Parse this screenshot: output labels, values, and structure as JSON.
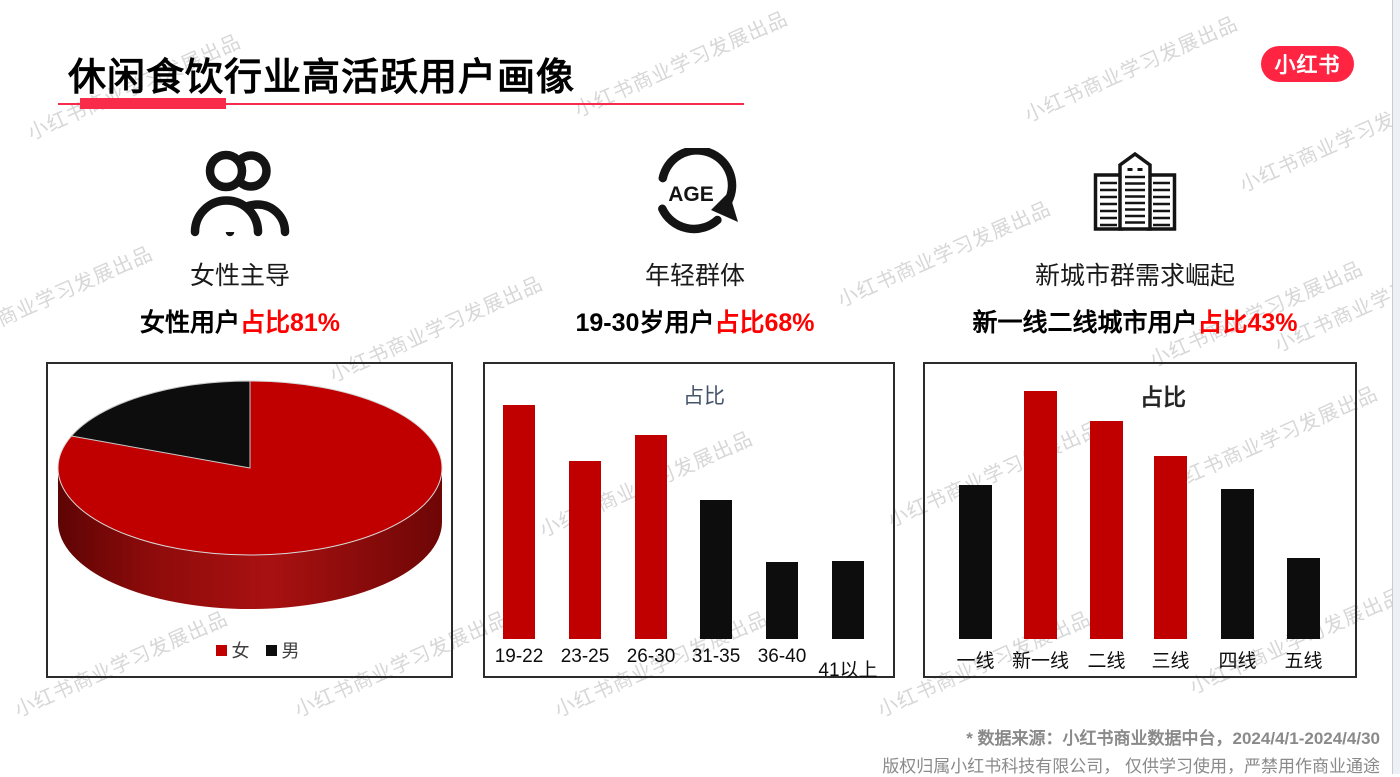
{
  "page": {
    "title": "休闲食饮行业高活跃用户画像",
    "logo_text": "小红书"
  },
  "watermark": {
    "text": "小红书商业学习发展出品"
  },
  "features": [
    {
      "icon": "two-people-icon",
      "heading": "女性主导",
      "stat_prefix": "女性用户",
      "stat_highlight": "占比81%"
    },
    {
      "icon": "age-cycle-icon",
      "heading": "年轻群体",
      "stat_prefix": "19-30岁用户",
      "stat_highlight": "占比68%"
    },
    {
      "icon": "city-buildings-icon",
      "heading": "新城市群需求崛起",
      "stat_prefix": "新一线二线城市用户",
      "stat_highlight": "占比43%"
    }
  ],
  "chart_data": [
    {
      "type": "pie",
      "style": "3d",
      "legend_position": "bottom",
      "categories": [
        "女",
        "男"
      ],
      "values": [
        81,
        19
      ],
      "colors": [
        "#C00000",
        "#0D0D0D"
      ]
    },
    {
      "type": "bar",
      "title": "占比",
      "unit": "%",
      "grid": false,
      "categories": [
        "19-22",
        "23-25",
        "26-30",
        "31-35",
        "36-40",
        "41以上"
      ],
      "values": [
        26,
        19.8,
        22.7,
        15.4,
        8.5,
        8.7
      ],
      "colors": [
        "#C00000",
        "#C00000",
        "#C00000",
        "#0D0D0D",
        "#0D0D0D",
        "#0D0D0D"
      ]
    },
    {
      "type": "bar",
      "title": "占比",
      "unit": "%",
      "grid": false,
      "categories": [
        "一线",
        "新一线",
        "二线",
        "三线",
        "四线",
        "五线"
      ],
      "values": [
        14.3,
        23,
        20.2,
        17,
        13.9,
        7.5
      ],
      "colors": [
        "#0D0D0D",
        "#C00000",
        "#C00000",
        "#C00000",
        "#0D0D0D",
        "#0D0D0D"
      ]
    }
  ],
  "footer": {
    "source_line": "* 数据来源：小红书商业数据中台，2024/4/1-2024/4/30",
    "copyright_line": "版权归属小红书科技有限公司， 仅供学习使用，严禁用作商业通途"
  },
  "colors": {
    "brand_red": "#F82B4B",
    "logo_red": "#FF2442",
    "chart_red": "#C00000",
    "chart_black": "#0D0D0D",
    "highlight_red": "#FF0000",
    "watermark_gray": "#D7D7D7",
    "footer_gray": "#8A8A8A"
  }
}
